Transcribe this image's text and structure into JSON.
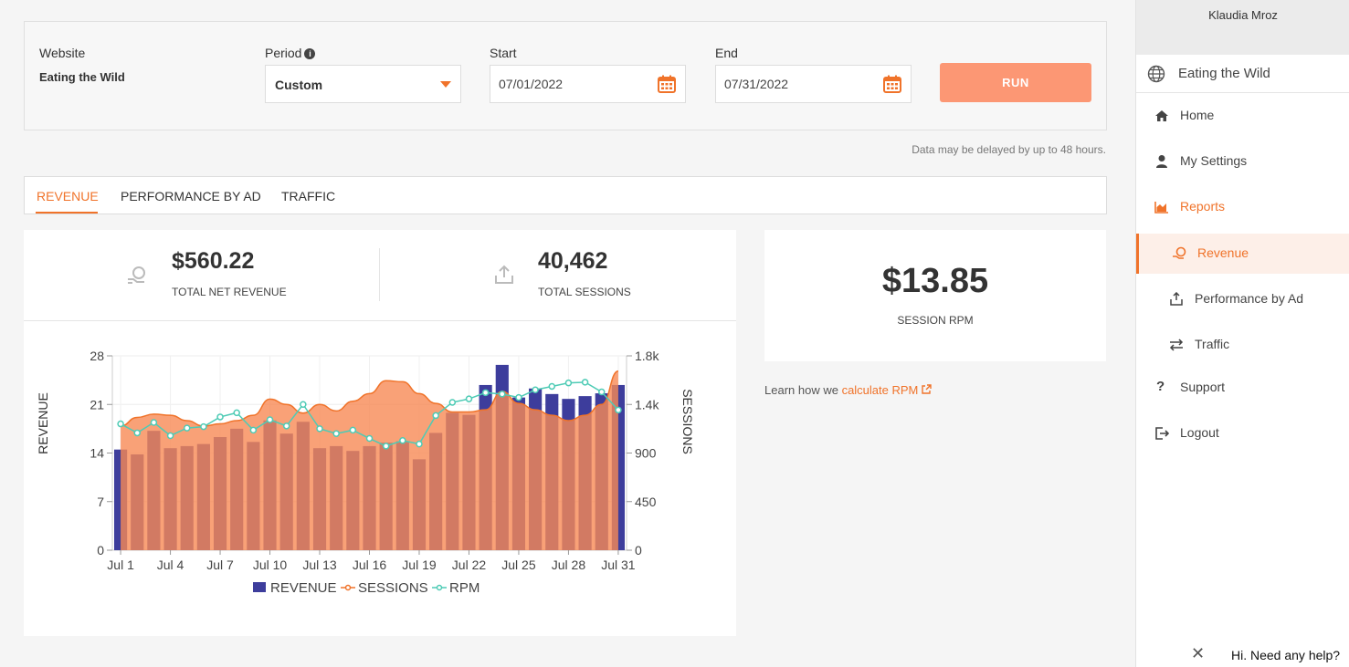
{
  "filters": {
    "website_label": "Website",
    "website_value": "Eating the Wild",
    "period_label": "Period",
    "period_value": "Custom",
    "start_label": "Start",
    "start_value": "07/01/2022",
    "end_label": "End",
    "end_value": "07/31/2022",
    "run_label": "RUN"
  },
  "delay_notice": "Data may be delayed by up to 48 hours.",
  "tabs": [
    {
      "label": "REVENUE",
      "active": true
    },
    {
      "label": "PERFORMANCE BY AD",
      "active": false
    },
    {
      "label": "TRAFFIC",
      "active": false
    }
  ],
  "stats": {
    "revenue_value": "$560.22",
    "revenue_label": "TOTAL NET REVENUE",
    "sessions_value": "40,462",
    "sessions_label": "TOTAL SESSIONS",
    "rpm_value": "$13.85",
    "rpm_label": "SESSION RPM"
  },
  "learn": {
    "prefix": "Learn how we ",
    "link": "calculate RPM"
  },
  "chart_data": {
    "type": "bar",
    "x": [
      "Jul 1",
      "Jul 2",
      "Jul 3",
      "Jul 4",
      "Jul 5",
      "Jul 6",
      "Jul 7",
      "Jul 8",
      "Jul 9",
      "Jul 10",
      "Jul 11",
      "Jul 12",
      "Jul 13",
      "Jul 14",
      "Jul 15",
      "Jul 16",
      "Jul 17",
      "Jul 18",
      "Jul 19",
      "Jul 20",
      "Jul 21",
      "Jul 22",
      "Jul 23",
      "Jul 24",
      "Jul 25",
      "Jul 26",
      "Jul 27",
      "Jul 28",
      "Jul 29",
      "Jul 30",
      "Jul 31"
    ],
    "xticks": [
      "Jul 1",
      "Jul 4",
      "Jul 7",
      "Jul 10",
      "Jul 13",
      "Jul 16",
      "Jul 19",
      "Jul 22",
      "Jul 25",
      "Jul 28",
      "Jul 31"
    ],
    "ylabel_left": "REVENUE",
    "ylabel_right": "SESSIONS",
    "yticks_left": [
      "0",
      "7",
      "14",
      "21",
      "28"
    ],
    "yticks_right": [
      "0",
      "450",
      "900",
      "1.4k",
      "1.8k"
    ],
    "ylim_left": [
      0,
      28
    ],
    "ylim_right": [
      0,
      1800
    ],
    "series": [
      {
        "name": "REVENUE",
        "axis": "left",
        "values": [
          14.5,
          13.8,
          17.2,
          14.7,
          15.0,
          15.3,
          16.3,
          17.5,
          15.6,
          18.7,
          16.8,
          18.5,
          14.7,
          15.0,
          14.3,
          15.0,
          15.5,
          15.7,
          13.1,
          16.9,
          19.8,
          19.5,
          23.8,
          26.7,
          22.0,
          23.3,
          22.5,
          21.8,
          22.2,
          22.6,
          23.8
        ]
      },
      {
        "name": "SESSIONS",
        "axis": "right",
        "values": [
          1150,
          1230,
          1260,
          1250,
          1200,
          1150,
          1170,
          1200,
          1250,
          1400,
          1350,
          1270,
          1350,
          1290,
          1380,
          1450,
          1570,
          1560,
          1450,
          1360,
          1280,
          1280,
          1300,
          1470,
          1360,
          1300,
          1250,
          1200,
          1250,
          1350,
          1660
        ]
      },
      {
        "name": "RPM",
        "axis": "left",
        "values": [
          18.2,
          16.9,
          18.4,
          16.5,
          17.6,
          17.8,
          19.2,
          19.8,
          17.3,
          18.8,
          17.9,
          21.0,
          17.5,
          16.8,
          17.3,
          16.1,
          15.0,
          15.8,
          15.3,
          19.4,
          21.3,
          21.8,
          22.7,
          22.5,
          22.0,
          23.1,
          23.6,
          24.1,
          24.2,
          22.8,
          20.2
        ]
      }
    ],
    "colors": {
      "revenue": "#3d3d9c",
      "sessions": "#f88a55",
      "rpm": "#4ecbb5"
    },
    "legend_position": "bottom"
  },
  "sidebar": {
    "user_name": "Klaudia Mroz",
    "site_name": "Eating the Wild",
    "items": [
      {
        "label": "Home",
        "icon": "home-icon"
      },
      {
        "label": "My Settings",
        "icon": "user-icon"
      },
      {
        "label": "Reports",
        "icon": "chart-icon"
      },
      {
        "label": "Revenue",
        "icon": "coins-icon"
      },
      {
        "label": "Performance by Ad",
        "icon": "ad-icon"
      },
      {
        "label": "Traffic",
        "icon": "arrows-icon"
      },
      {
        "label": "Support",
        "icon": "question-icon"
      },
      {
        "label": "Logout",
        "icon": "logout-icon"
      }
    ]
  },
  "help_widget": {
    "label": "Hi. Need any help?"
  }
}
